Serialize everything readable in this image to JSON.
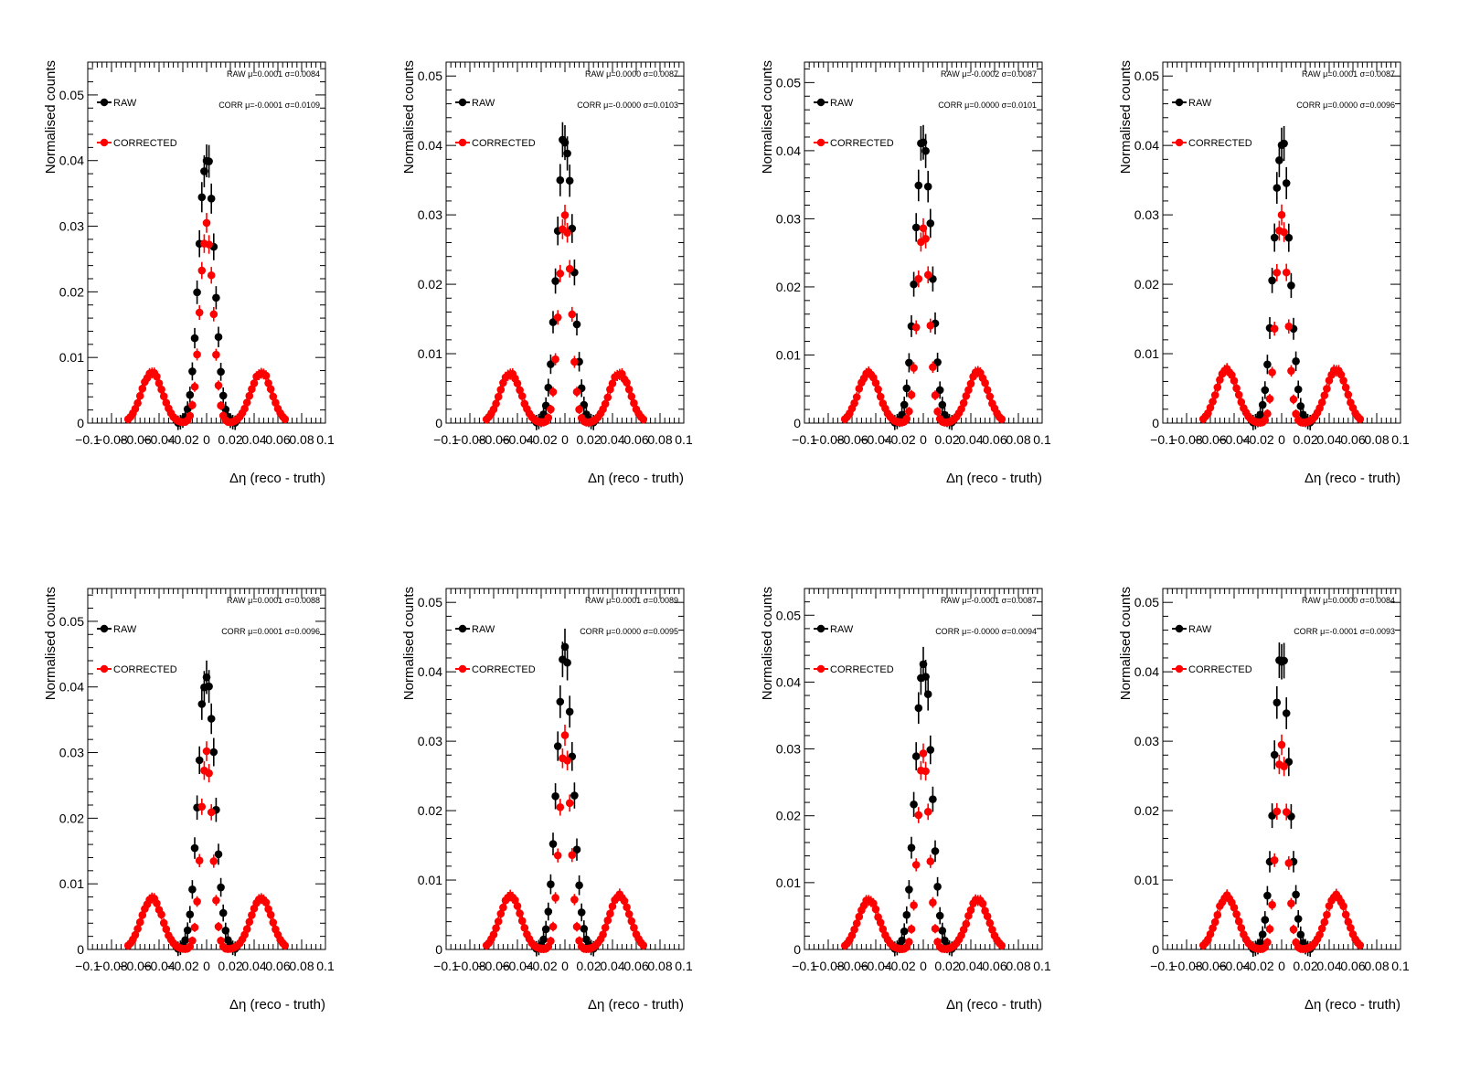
{
  "colors": {
    "raw": "#000000",
    "corrected": "#ff0000",
    "axis": "#000000"
  },
  "chart_data": [
    {
      "type": "scatter",
      "xlabel": "Δη  (reco - truth)",
      "ylabel": "Normalised counts",
      "xlim": [
        -0.1,
        0.1
      ],
      "ylim": [
        0,
        0.055
      ],
      "x_ticks": [
        "−0.1",
        "−0.08",
        "−0.06",
        "−0.04",
        "−0.02",
        "0",
        "0.02",
        "0.04",
        "0.06",
        "0.08",
        "0.1"
      ],
      "y_ticks": [
        "0",
        "0.01",
        "0.02",
        "0.03",
        "0.04",
        "0.05"
      ],
      "legend": [
        "RAW",
        "CORRECTED"
      ],
      "annotations": [
        "RAW μ=0.0001 σ=0.0084",
        "CORR μ=-0.0001 σ=0.0109"
      ],
      "series": [
        {
          "name": "RAW",
          "sigma": 0.0084,
          "peak": 0.041
        },
        {
          "name": "CORRECTED",
          "sigma": 0.0109,
          "peak": 0.03,
          "side_peak": 0.0078
        }
      ]
    },
    {
      "type": "scatter",
      "xlabel": "Δη  (reco - truth)",
      "ylabel": "Normalised counts",
      "xlim": [
        -0.1,
        0.1
      ],
      "ylim": [
        0,
        0.052
      ],
      "x_ticks": [
        "−0.1",
        "−0.08",
        "−0.06",
        "−0.04",
        "−0.02",
        "0",
        "0.02",
        "0.04",
        "0.06",
        "0.08",
        "0.1"
      ],
      "y_ticks": [
        "0",
        "0.01",
        "0.02",
        "0.03",
        "0.04",
        "0.05"
      ],
      "legend": [
        "RAW",
        "CORRECTED"
      ],
      "annotations": [
        "RAW μ=0.0000 σ=0.0087",
        "CORR μ=-0.0000 σ=0.0103"
      ],
      "series": [
        {
          "name": "RAW",
          "sigma": 0.0087,
          "peak": 0.042
        },
        {
          "name": "CORRECTED",
          "sigma": 0.0103,
          "peak": 0.03,
          "side_peak": 0.0072
        }
      ]
    },
    {
      "type": "scatter",
      "xlabel": "Δη  (reco - truth)",
      "ylabel": "Normalised counts",
      "xlim": [
        -0.1,
        0.1
      ],
      "ylim": [
        0,
        0.053
      ],
      "x_ticks": [
        "−0.1",
        "−0.08",
        "−0.06",
        "−0.04",
        "−0.02",
        "0",
        "0.02",
        "0.04",
        "0.06",
        "0.08",
        "0.1"
      ],
      "y_ticks": [
        "0",
        "0.01",
        "0.02",
        "0.03",
        "0.04",
        "0.05"
      ],
      "legend": [
        "RAW",
        "CORRECTED"
      ],
      "annotations": [
        "RAW μ=-0.0002 σ=0.0087",
        "CORR μ=0.0000 σ=0.0101"
      ],
      "series": [
        {
          "name": "RAW",
          "sigma": 0.0087,
          "peak": 0.042
        },
        {
          "name": "CORRECTED",
          "sigma": 0.0101,
          "peak": 0.029,
          "side_peak": 0.0075
        }
      ]
    },
    {
      "type": "scatter",
      "xlabel": "Δη  (reco - truth)",
      "ylabel": "Normalised counts",
      "xlim": [
        -0.1,
        0.1
      ],
      "ylim": [
        0,
        0.052
      ],
      "x_ticks": [
        "−0.1",
        "−0.08",
        "−0.06",
        "−0.04",
        "−0.02",
        "0",
        "0.02",
        "0.04",
        "0.06",
        "0.08",
        "0.1"
      ],
      "y_ticks": [
        "0",
        "0.01",
        "0.02",
        "0.03",
        "0.04",
        "0.05"
      ],
      "legend": [
        "RAW",
        "CORRECTED"
      ],
      "annotations": [
        "RAW μ=0.0001 σ=0.0087",
        "CORR μ=0.0000 σ=0.0096"
      ],
      "series": [
        {
          "name": "RAW",
          "sigma": 0.0087,
          "peak": 0.041
        },
        {
          "name": "CORRECTED",
          "sigma": 0.0096,
          "peak": 0.03,
          "side_peak": 0.0077
        }
      ]
    },
    {
      "type": "scatter",
      "xlabel": "Δη  (reco - truth)",
      "ylabel": "Normalised counts",
      "xlim": [
        -0.1,
        0.1
      ],
      "ylim": [
        0,
        0.055
      ],
      "x_ticks": [
        "−0.1",
        "−0.08",
        "−0.06",
        "−0.04",
        "−0.02",
        "0",
        "0.02",
        "0.04",
        "0.06",
        "0.08",
        "0.1"
      ],
      "y_ticks": [
        "0",
        "0.01",
        "0.02",
        "0.03",
        "0.04",
        "0.05"
      ],
      "legend": [
        "RAW",
        "CORRECTED"
      ],
      "annotations": [
        "RAW μ=0.0001 σ=0.0088",
        "CORR μ=0.0001 σ=0.0096"
      ],
      "series": [
        {
          "name": "RAW",
          "sigma": 0.0088,
          "peak": 0.043
        },
        {
          "name": "CORRECTED",
          "sigma": 0.0096,
          "peak": 0.03,
          "side_peak": 0.0078
        }
      ]
    },
    {
      "type": "scatter",
      "xlabel": "Δη  (reco - truth)",
      "ylabel": "Normalised counts",
      "xlim": [
        -0.1,
        0.1
      ],
      "ylim": [
        0,
        0.052
      ],
      "x_ticks": [
        "−0.1",
        "−0.08",
        "−0.06",
        "−0.04",
        "−0.02",
        "0",
        "0.02",
        "0.04",
        "0.06",
        "0.08",
        "0.1"
      ],
      "y_ticks": [
        "0",
        "0.01",
        "0.02",
        "0.03",
        "0.04",
        "0.05"
      ],
      "legend": [
        "RAW",
        "CORRECTED"
      ],
      "annotations": [
        "RAW μ=0.0001 σ=0.0089",
        "CORR μ=0.0000 σ=0.0095"
      ],
      "series": [
        {
          "name": "RAW",
          "sigma": 0.0089,
          "peak": 0.042
        },
        {
          "name": "CORRECTED",
          "sigma": 0.0095,
          "peak": 0.03,
          "side_peak": 0.0078
        }
      ]
    },
    {
      "type": "scatter",
      "xlabel": "Δη  (reco - truth)",
      "ylabel": "Normalised counts",
      "xlim": [
        -0.1,
        0.1
      ],
      "ylim": [
        0,
        0.054
      ],
      "x_ticks": [
        "−0.1",
        "−0.08",
        "−0.06",
        "−0.04",
        "−0.02",
        "0",
        "0.02",
        "0.04",
        "0.06",
        "0.08",
        "0.1"
      ],
      "y_ticks": [
        "0",
        "0.01",
        "0.02",
        "0.03",
        "0.04",
        "0.05"
      ],
      "legend": [
        "RAW",
        "CORRECTED"
      ],
      "annotations": [
        "RAW μ=-0.0001 σ=0.0087",
        "CORR μ=-0.0000 σ=0.0094"
      ],
      "series": [
        {
          "name": "RAW",
          "sigma": 0.0087,
          "peak": 0.044
        },
        {
          "name": "CORRECTED",
          "sigma": 0.0094,
          "peak": 0.029,
          "side_peak": 0.0075
        }
      ]
    },
    {
      "type": "scatter",
      "xlabel": "Δη  (reco - truth)",
      "ylabel": "Normalised counts",
      "xlim": [
        -0.1,
        0.1
      ],
      "ylim": [
        0,
        0.052
      ],
      "x_ticks": [
        "−0.1",
        "−0.08",
        "−0.06",
        "−0.04",
        "−0.02",
        "0",
        "0.02",
        "0.04",
        "0.06",
        "0.08",
        "0.1"
      ],
      "y_ticks": [
        "0",
        "0.01",
        "0.02",
        "0.03",
        "0.04",
        "0.05"
      ],
      "legend": [
        "RAW",
        "CORRECTED"
      ],
      "annotations": [
        "RAW μ=0.0000 σ=0.0084",
        "CORR μ=-0.0001 σ=0.0093"
      ],
      "series": [
        {
          "name": "RAW",
          "sigma": 0.0084,
          "peak": 0.042
        },
        {
          "name": "CORRECTED",
          "sigma": 0.0093,
          "peak": 0.029,
          "side_peak": 0.0077
        }
      ]
    }
  ]
}
